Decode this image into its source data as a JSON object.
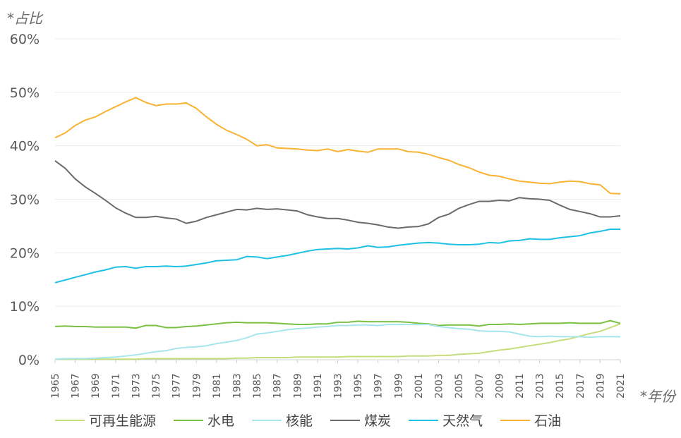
{
  "chart_data": {
    "type": "line",
    "ylabel": "*占比",
    "xlabel": "*年份",
    "ylim": [
      0,
      60
    ],
    "yticks": [
      "0%",
      "10%",
      "20%",
      "30%",
      "40%",
      "50%",
      "60%"
    ],
    "grid": true,
    "legend_position": "bottom",
    "x": [
      1965,
      1966,
      1967,
      1968,
      1969,
      1970,
      1971,
      1972,
      1973,
      1974,
      1975,
      1976,
      1977,
      1978,
      1979,
      1980,
      1981,
      1982,
      1983,
      1984,
      1985,
      1986,
      1987,
      1988,
      1989,
      1990,
      1991,
      1992,
      1993,
      1994,
      1995,
      1996,
      1997,
      1998,
      1999,
      2000,
      2001,
      2002,
      2003,
      2004,
      2005,
      2006,
      2007,
      2008,
      2009,
      2010,
      2011,
      2012,
      2013,
      2014,
      2015,
      2016,
      2017,
      2018,
      2019,
      2020,
      2021
    ],
    "xtick_labels": [
      "1965",
      "1967",
      "1969",
      "1971",
      "1973",
      "1975",
      "1977",
      "1979",
      "1981",
      "1983",
      "1985",
      "1987",
      "1989",
      "1991",
      "1993",
      "1995",
      "1997",
      "1999",
      "2001",
      "2003",
      "2005",
      "2007",
      "2009",
      "2011",
      "2013",
      "2015",
      "2017",
      "2019",
      "2021"
    ],
    "series": [
      {
        "name": "可再生能源",
        "color": "#c5dd7a",
        "values": [
          0.1,
          0.1,
          0.1,
          0.1,
          0.1,
          0.1,
          0.1,
          0.1,
          0.1,
          0.2,
          0.2,
          0.2,
          0.2,
          0.2,
          0.2,
          0.2,
          0.2,
          0.2,
          0.3,
          0.3,
          0.4,
          0.4,
          0.4,
          0.4,
          0.5,
          0.5,
          0.5,
          0.5,
          0.5,
          0.6,
          0.6,
          0.6,
          0.6,
          0.6,
          0.6,
          0.7,
          0.7,
          0.7,
          0.8,
          0.8,
          1.0,
          1.1,
          1.2,
          1.5,
          1.8,
          2.0,
          2.3,
          2.6,
          2.9,
          3.2,
          3.6,
          3.9,
          4.4,
          4.9,
          5.3,
          6.0,
          6.7
        ]
      },
      {
        "name": "水电",
        "color": "#7ac143",
        "values": [
          6.2,
          6.3,
          6.2,
          6.2,
          6.1,
          6.1,
          6.1,
          6.1,
          5.9,
          6.4,
          6.4,
          6.0,
          6.0,
          6.2,
          6.3,
          6.5,
          6.7,
          6.9,
          7.0,
          6.9,
          6.9,
          6.9,
          6.8,
          6.7,
          6.6,
          6.6,
          6.7,
          6.7,
          7.0,
          7.0,
          7.2,
          7.1,
          7.1,
          7.1,
          7.1,
          7.0,
          6.8,
          6.7,
          6.4,
          6.5,
          6.5,
          6.5,
          6.3,
          6.6,
          6.6,
          6.7,
          6.6,
          6.7,
          6.8,
          6.8,
          6.8,
          6.9,
          6.8,
          6.8,
          6.8,
          7.3,
          6.8
        ]
      },
      {
        "name": "核能",
        "color": "#a8e6ee",
        "values": [
          0.1,
          0.2,
          0.2,
          0.2,
          0.3,
          0.4,
          0.5,
          0.7,
          0.9,
          1.2,
          1.5,
          1.7,
          2.1,
          2.3,
          2.4,
          2.6,
          3.0,
          3.3,
          3.6,
          4.1,
          4.8,
          5.0,
          5.3,
          5.6,
          5.8,
          5.9,
          6.1,
          6.2,
          6.4,
          6.4,
          6.5,
          6.5,
          6.4,
          6.6,
          6.6,
          6.6,
          6.6,
          6.6,
          6.2,
          6.0,
          5.8,
          5.7,
          5.4,
          5.3,
          5.3,
          5.2,
          4.8,
          4.4,
          4.3,
          4.4,
          4.3,
          4.3,
          4.3,
          4.2,
          4.3,
          4.3,
          4.3
        ]
      },
      {
        "name": "煤炭",
        "color": "#6b6b6b",
        "values": [
          37.2,
          35.8,
          33.8,
          32.3,
          31.1,
          29.8,
          28.4,
          27.4,
          26.6,
          26.6,
          26.8,
          26.5,
          26.3,
          25.5,
          25.9,
          26.6,
          27.1,
          27.6,
          28.1,
          28.0,
          28.3,
          28.1,
          28.2,
          28.0,
          27.8,
          27.1,
          26.7,
          26.4,
          26.4,
          26.1,
          25.7,
          25.5,
          25.2,
          24.8,
          24.6,
          24.8,
          24.9,
          25.4,
          26.6,
          27.2,
          28.3,
          29.0,
          29.6,
          29.6,
          29.8,
          29.7,
          30.3,
          30.1,
          30.0,
          29.8,
          28.9,
          28.1,
          27.7,
          27.3,
          26.7,
          26.7,
          26.9
        ]
      },
      {
        "name": "天然气",
        "color": "#1ec0e4",
        "values": [
          14.4,
          14.9,
          15.4,
          15.9,
          16.4,
          16.8,
          17.3,
          17.4,
          17.1,
          17.4,
          17.4,
          17.5,
          17.4,
          17.5,
          17.8,
          18.1,
          18.5,
          18.6,
          18.7,
          19.3,
          19.2,
          18.9,
          19.2,
          19.5,
          19.9,
          20.3,
          20.6,
          20.7,
          20.8,
          20.7,
          20.9,
          21.3,
          21.0,
          21.1,
          21.4,
          21.6,
          21.8,
          21.9,
          21.8,
          21.6,
          21.5,
          21.5,
          21.6,
          21.9,
          21.8,
          22.2,
          22.3,
          22.6,
          22.5,
          22.5,
          22.8,
          23.0,
          23.2,
          23.7,
          24.0,
          24.4,
          24.4
        ]
      },
      {
        "name": "石油",
        "color": "#f9b233",
        "values": [
          41.5,
          42.4,
          43.8,
          44.8,
          45.4,
          46.4,
          47.3,
          48.2,
          49.0,
          48.1,
          47.5,
          47.8,
          47.8,
          48.0,
          47.0,
          45.4,
          44.0,
          42.9,
          42.1,
          41.2,
          40.0,
          40.2,
          39.6,
          39.5,
          39.4,
          39.2,
          39.1,
          39.4,
          38.9,
          39.3,
          39.0,
          38.8,
          39.4,
          39.4,
          39.4,
          38.9,
          38.8,
          38.4,
          37.8,
          37.3,
          36.5,
          35.9,
          35.1,
          34.5,
          34.3,
          33.8,
          33.4,
          33.2,
          33.0,
          32.9,
          33.2,
          33.4,
          33.3,
          32.9,
          32.7,
          31.1,
          31.0
        ]
      }
    ]
  }
}
